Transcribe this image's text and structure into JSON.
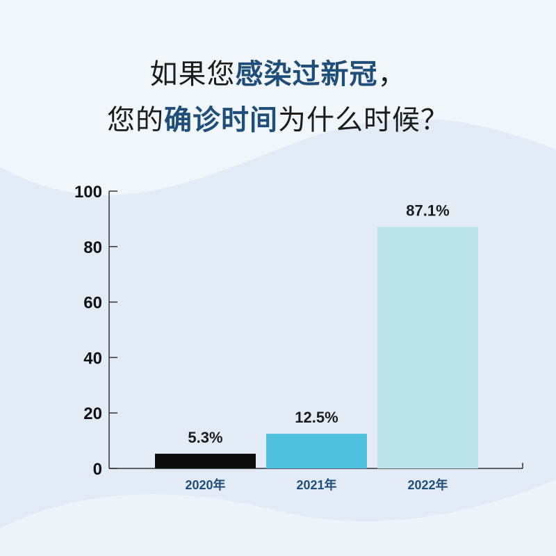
{
  "title": {
    "line1": {
      "pre": "如果您",
      "em": "感染过新冠",
      "post": "，"
    },
    "line2": {
      "pre": "您的",
      "em": "确诊时间",
      "post": "为什么时候？"
    }
  },
  "colors": {
    "background": "#f1f6fb",
    "wave": "#e2ebf6",
    "title_emphasis": "#1f4e79",
    "axis": "#333333",
    "xtick": "#1f4e79"
  },
  "chart_data": {
    "type": "bar",
    "categories": [
      "2020年",
      "2021年",
      "2022年"
    ],
    "values": [
      5.3,
      12.5,
      87.1
    ],
    "data_labels": [
      "5.3%",
      "12.5%",
      "87.1%"
    ],
    "bar_colors": [
      "#0b0b0b",
      "#4fc1de",
      "#bde3ea"
    ],
    "ylim": [
      0,
      100
    ],
    "yticks": [
      0,
      20,
      40,
      60,
      80,
      100
    ],
    "grid": false,
    "legend": "none",
    "xlabel": "",
    "ylabel": ""
  }
}
